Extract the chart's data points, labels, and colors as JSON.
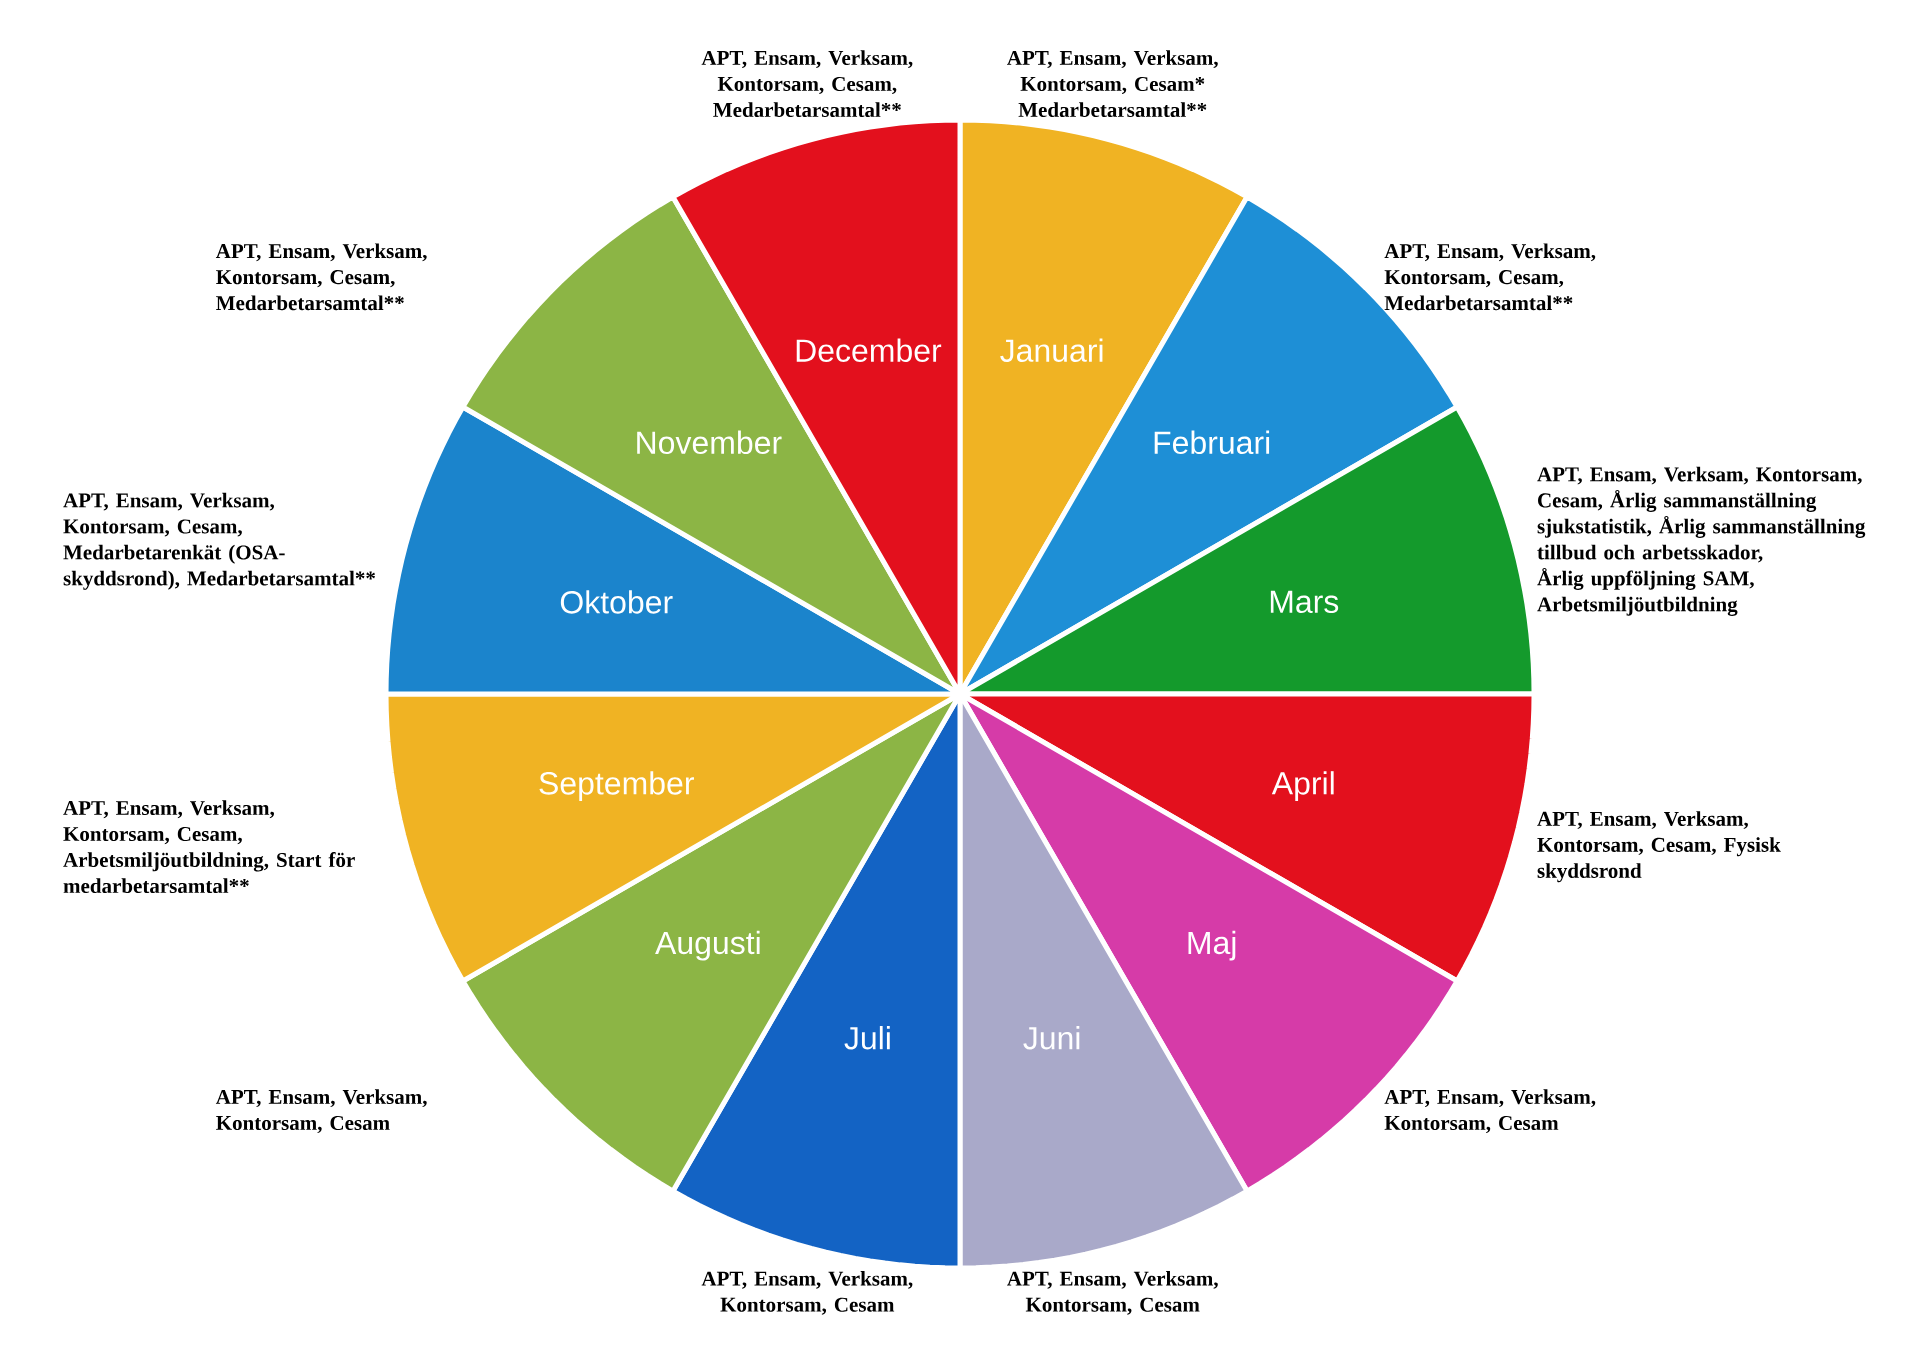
{
  "chart_data": {
    "type": "pie",
    "categories": [
      "Januari",
      "Februari",
      "Mars",
      "April",
      "Maj",
      "Juni",
      "Juli",
      "Augusti",
      "September",
      "Oktober",
      "November",
      "December"
    ],
    "values": [
      8.333,
      8.333,
      8.333,
      8.333,
      8.333,
      8.333,
      8.333,
      8.333,
      8.333,
      8.333,
      8.333,
      8.333
    ],
    "colors": [
      "#f0b323",
      "#1e8fd6",
      "#149a2c",
      "#e3101d",
      "#d63ba8",
      "#a9a9c9",
      "#1363c4",
      "#8cb545",
      "#f0b323",
      "#1b84cc",
      "#8cb545",
      "#e3101d"
    ],
    "annotations": [
      "APT, Ensam, Verksam, Kontorsam, Cesam* Medarbetarsamtal**",
      "APT, Ensam, Verksam, Kontorsam, Cesam, Medarbetarsamtal**",
      "APT, Ensam, Verksam, Kontorsam, Cesam, Årlig sammanställning sjukstatistik, Årlig sammanställning tillbud och arbetsskador, Årlig uppföljning SAM, Arbetsmiljöutbildning",
      "APT, Ensam, Verksam, Kontorsam, Cesam, Fysisk skyddsrond",
      "APT, Ensam, Verksam, Kontorsam, Cesam",
      "APT, Ensam, Verksam, Kontorsam, Cesam",
      "APT, Ensam, Verksam, Kontorsam, Cesam",
      "APT, Ensam, Verksam, Kontorsam, Cesam",
      "APT, Ensam, Verksam, Kontorsam, Cesam, Arbetsmiljöutbildning, Start för medarbetarsamtal**",
      "APT, Ensam, Verksam, Kontorsam, Cesam, Medarbetarenkät (OSA-skyddsrond), Medarbetarsamtal**",
      "APT, Ensam, Verksam, Kontorsam, Cesam, Medarbetarsamtal**",
      "APT, Ensam, Verksam, Kontorsam, Cesam, Medarbetarsamtal**"
    ]
  }
}
